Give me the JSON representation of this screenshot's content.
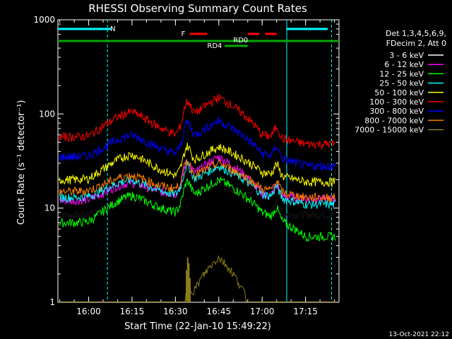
{
  "chart_data": {
    "type": "line",
    "title": "RHESSI Observing Summary Count Rates",
    "xlabel": "Start Time (22-Jan-10 15:49:22)",
    "ylabel": "Count Rate (s⁻¹ detector⁻¹)",
    "yscale": "log",
    "ylim": [
      1,
      1000
    ],
    "xlim_minutes": [
      "15:49:22",
      "17:26:00"
    ],
    "x_ticks": [
      "16:00",
      "16:15",
      "16:30",
      "16:45",
      "17:00",
      "17:15"
    ],
    "y_ticks": [
      "1",
      "10",
      "100",
      "1000"
    ],
    "legend_header": [
      "Det 1,3,4,5,6,9,",
      "FDecim 2, Att 0"
    ],
    "series": [
      {
        "name": "3 - 6 keV",
        "color": "#000000",
        "values_at_ticks": [
          8.5,
          10,
          9,
          19,
          9,
          8.5
        ]
      },
      {
        "name": "6 - 12 keV",
        "color": "#ff00ff",
        "values_at_ticks": [
          12,
          15,
          14,
          35,
          14,
          12.5
        ]
      },
      {
        "name": "12 - 25 keV",
        "color": "#00ff00",
        "values_at_ticks": [
          7,
          11,
          9,
          20,
          9,
          5
        ]
      },
      {
        "name": "25 - 50 keV",
        "color": "#00ffff",
        "values_at_ticks": [
          13,
          16,
          14,
          28,
          14,
          11
        ]
      },
      {
        "name": "50 - 100 keV",
        "color": "#ffff00",
        "values_at_ticks": [
          20,
          30,
          22,
          45,
          24,
          19
        ]
      },
      {
        "name": "100 - 300 keV",
        "color": "#ff0000",
        "values_at_ticks": [
          57,
          85,
          60,
          150,
          60,
          48
        ]
      },
      {
        "name": "300 - 800 keV",
        "color": "#0000ff",
        "values_at_ticks": [
          35,
          48,
          38,
          85,
          38,
          28
        ]
      },
      {
        "name": "800 - 7000 keV",
        "color": "#ff7f00",
        "values_at_ticks": [
          15,
          18,
          16,
          30,
          16,
          13
        ]
      },
      {
        "name": "7000 - 15000 keV",
        "color": "#8b7d1a",
        "values_at_ticks": [
          null,
          null,
          null,
          3,
          null,
          null
        ]
      }
    ],
    "annotations": [
      {
        "label": "N",
        "color": "#00ffff"
      },
      {
        "label": "F",
        "color": "#ff0000"
      },
      {
        "label": "RD0",
        "color": "#00aa00"
      },
      {
        "label": "RD4",
        "color": "#00aa00"
      }
    ],
    "grid": false
  },
  "footer": {
    "timestamp": "13-Oct-2021 22:12"
  }
}
